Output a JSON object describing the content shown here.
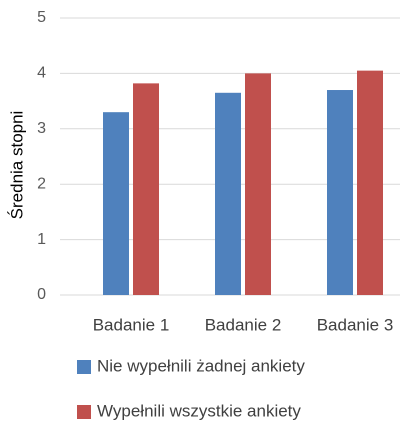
{
  "chart_data": {
    "type": "bar",
    "y_label": "Średnia stopni",
    "categories": [
      "Badanie 1",
      "Badanie 2",
      "Badanie 3"
    ],
    "series": [
      {
        "name": "Nie wypełnili żadnej ankiety",
        "color": "#4f81bd",
        "values": [
          3.3,
          3.65,
          3.7
        ]
      },
      {
        "name": "Wypełnili wszystkie ankiety",
        "color": "#c0504d",
        "values": [
          3.82,
          4.0,
          4.05
        ]
      }
    ],
    "ylim": [
      0,
      5
    ],
    "yticks": [
      0,
      1,
      2,
      3,
      4,
      5
    ],
    "grid": true,
    "legend": "bottom"
  }
}
